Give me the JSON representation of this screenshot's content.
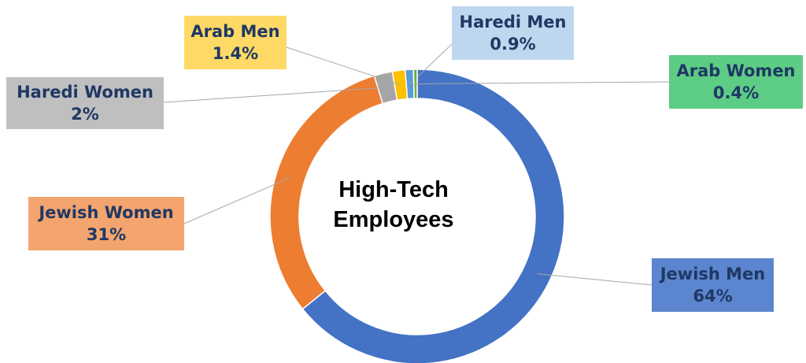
{
  "chart_data": {
    "type": "donut",
    "title": "High-Tech Employees",
    "categories": [
      "Jewish Men",
      "Jewish Women",
      "Haredi Women",
      "Arab Men",
      "Haredi Men",
      "Arab Women"
    ],
    "values": [
      64,
      31,
      2,
      1.4,
      0.9,
      0.4
    ],
    "value_labels": [
      "64%",
      "31%",
      "2%",
      "1.4%",
      "0.9%",
      "0.4%"
    ],
    "colors": [
      "#4472c4",
      "#ed7d31",
      "#a5a5a5",
      "#ffc000",
      "#5b9bd5",
      "#70ad47"
    ],
    "label_colors": [
      "#5b86cf",
      "#f4a46e",
      "#bfbfbf",
      "#ffd966",
      "#bdd7ee",
      "#5dcc85"
    ]
  }
}
